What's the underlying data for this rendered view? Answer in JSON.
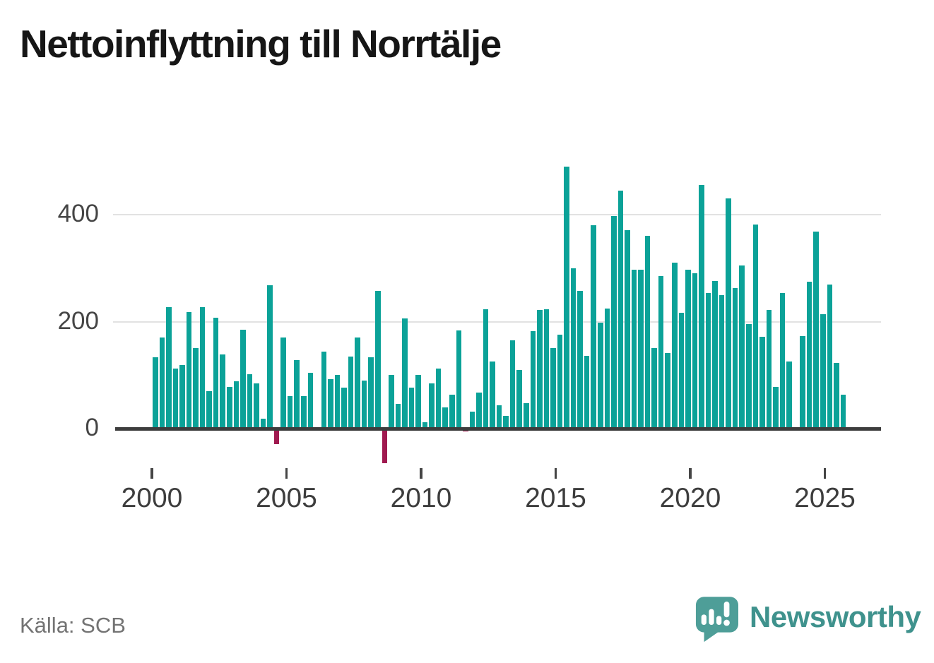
{
  "title": "Nettoinflyttning till Norrtälje",
  "source": "Källa: SCB",
  "branding": {
    "name": "Newsworthy"
  },
  "colors": {
    "positive": "#0ba298",
    "negative": "#a01a50",
    "grid": "#e2e2e2",
    "axis": "#3d3d3d",
    "tick": "#454545",
    "brand_text": "#3f928d",
    "brand_icon": "#4e9e98"
  },
  "chart_data": {
    "type": "bar",
    "title": "Nettoinflyttning till Norrtälje",
    "x_start": "2000 Q1",
    "x_end": "2025 Q3",
    "frequency": "quarterly",
    "grid": "horizontal",
    "legend": "none",
    "y_ticks": [
      0,
      200,
      400
    ],
    "x_ticks": [
      2000,
      2005,
      2010,
      2015,
      2020,
      2025
    ],
    "ylim": [
      -80,
      520
    ],
    "values": [
      133,
      170,
      227,
      112,
      119,
      218,
      150,
      227,
      70,
      207,
      139,
      78,
      88,
      185,
      102,
      85,
      18,
      268,
      -29,
      170,
      61,
      128,
      61,
      105,
      0,
      144,
      92,
      101,
      76,
      135,
      170,
      90,
      133,
      258,
      -65,
      100,
      46,
      206,
      76,
      101,
      12,
      85,
      112,
      40,
      63,
      184,
      -5,
      32,
      68,
      223,
      125,
      44,
      24,
      165,
      110,
      48,
      182,
      222,
      223,
      151,
      175,
      490,
      300,
      257,
      136,
      380,
      198,
      225,
      398,
      445,
      371,
      297,
      297,
      360,
      150,
      285,
      141,
      310,
      217,
      297,
      290,
      455,
      253,
      276,
      249,
      431,
      263,
      305,
      195,
      381,
      172,
      222,
      78,
      253,
      125,
      0,
      173,
      275,
      368,
      214,
      270,
      123,
      63
    ]
  }
}
